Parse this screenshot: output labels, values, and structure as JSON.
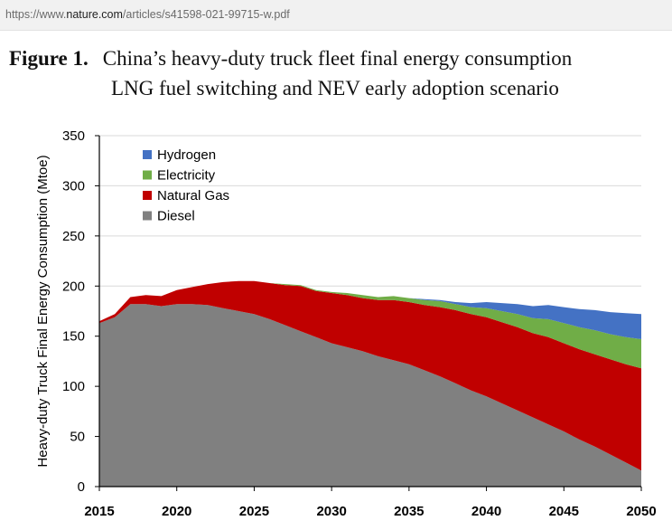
{
  "browser": {
    "url_prefix": "https://www.",
    "url_domain": "nature.com",
    "url_path": "/articles/s41598-021-99715-w.pdf"
  },
  "caption": {
    "label": "Figure 1.",
    "line1": "China’s heavy-duty truck fleet final energy consumption",
    "line2": "LNG fuel switching and NEV early adoption scenario"
  },
  "chart_data": {
    "type": "area",
    "stacked": true,
    "title": "",
    "xlabel": "",
    "ylabel": "Heavy-duty Truck Final Energy Consumption (Mtoe)",
    "xlim": [
      2015,
      2050
    ],
    "ylim": [
      0,
      350
    ],
    "x_ticks": [
      2015,
      2020,
      2025,
      2030,
      2035,
      2040,
      2045,
      2050
    ],
    "y_ticks": [
      0,
      50,
      100,
      150,
      200,
      250,
      300,
      350
    ],
    "grid": true,
    "legend_position": "top-left",
    "x": [
      2015,
      2016,
      2017,
      2018,
      2019,
      2020,
      2021,
      2022,
      2023,
      2024,
      2025,
      2026,
      2027,
      2028,
      2029,
      2030,
      2031,
      2032,
      2033,
      2034,
      2035,
      2036,
      2037,
      2038,
      2039,
      2040,
      2041,
      2042,
      2043,
      2044,
      2045,
      2046,
      2047,
      2048,
      2049,
      2050
    ],
    "series": [
      {
        "name": "Diesel",
        "color": "#808080",
        "values": [
          163,
          169,
          182,
          182,
          180,
          182,
          182,
          181,
          178,
          175,
          172,
          167,
          161,
          155,
          149,
          143,
          139,
          135,
          130,
          126,
          122,
          116,
          110,
          103,
          96,
          90,
          83,
          76,
          69,
          62,
          55,
          47,
          40,
          32,
          24,
          16
        ]
      },
      {
        "name": "Natural Gas",
        "color": "#c00000",
        "values": [
          2,
          3,
          7,
          9,
          10,
          14,
          17,
          21,
          26,
          30,
          33,
          36,
          40,
          45,
          46,
          50,
          52,
          53,
          56,
          60,
          62,
          65,
          69,
          73,
          76,
          79,
          81,
          83,
          84,
          87,
          88,
          90,
          92,
          95,
          98,
          102
        ]
      },
      {
        "name": "Electricity",
        "color": "#70ad47",
        "values": [
          0,
          0,
          0,
          0,
          0,
          0,
          0,
          0,
          0,
          0,
          0,
          0,
          1,
          1,
          1,
          1,
          2,
          3,
          3,
          4,
          4,
          5,
          6,
          6,
          7,
          9,
          11,
          13,
          15,
          18,
          20,
          22,
          24,
          25,
          27,
          29
        ]
      },
      {
        "name": "Hydrogen",
        "color": "#4472c4",
        "values": [
          0,
          0,
          0,
          0,
          0,
          0,
          0,
          0,
          0,
          0,
          0,
          0,
          0,
          0,
          0,
          0,
          0,
          0,
          0,
          0,
          0,
          1,
          1,
          2,
          4,
          6,
          8,
          10,
          12,
          14,
          16,
          18,
          20,
          22,
          24,
          25
        ]
      }
    ],
    "legend_order": [
      "Hydrogen",
      "Electricity",
      "Natural Gas",
      "Diesel"
    ]
  }
}
